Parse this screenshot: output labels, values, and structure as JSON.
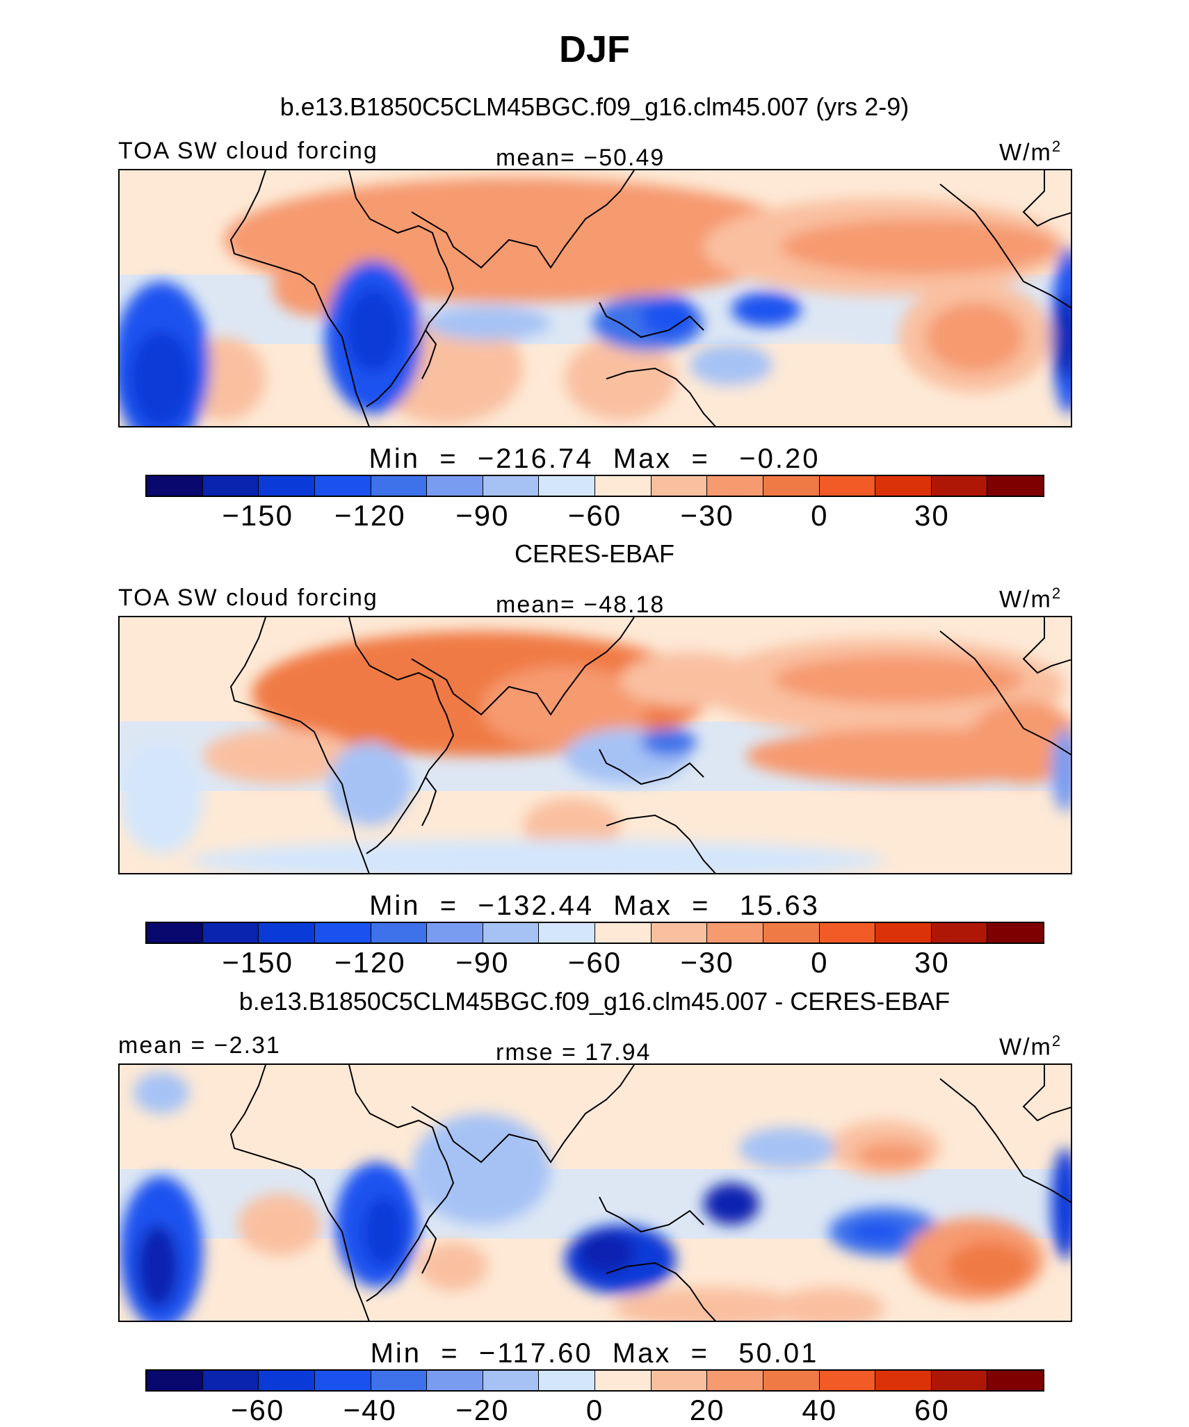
{
  "title": "DJF",
  "colorbar_colors": [
    "#08086f",
    "#0a24b0",
    "#0a3ad8",
    "#1a52f0",
    "#3e72ea",
    "#7a9cf0",
    "#a6c2f5",
    "#d4e6fb",
    "#fde9d6",
    "#f9c0a0",
    "#f69a70",
    "#f07a45",
    "#f25a26",
    "#dc3208",
    "#ae1606",
    "#7e0000"
  ],
  "panels": [
    {
      "header": "b.e13.B1850C5CLM45BGC.f09_g16.clm45.007 (yrs 2-9)",
      "left_label": "TOA SW cloud forcing",
      "center_label": "mean= −50.49",
      "units": "W/m",
      "units_sup": "2",
      "minmax": "Min  =  −216.74  Max  =   −0.20",
      "ticks": [
        "−150",
        "−120",
        "−90",
        "−60",
        "−30",
        "0",
        "30"
      ]
    },
    {
      "header": "CERES-EBAF",
      "left_label": "TOA SW cloud forcing",
      "center_label": "mean= −48.18",
      "units": "W/m",
      "units_sup": "2",
      "minmax": "Min  =  −132.44  Max  =   15.63",
      "ticks": [
        "−150",
        "−120",
        "−90",
        "−60",
        "−30",
        "0",
        "30"
      ]
    },
    {
      "header": "b.e13.B1850C5CLM45BGC.f09_g16.clm45.007 - CERES-EBAF",
      "left_label": "mean =  −2.31",
      "center_label": "rmse =  17.94",
      "units": "W/m",
      "units_sup": "2",
      "minmax": "Min  =  −117.60  Max  =   50.01",
      "ticks": [
        "−60",
        "−40",
        "−20",
        "0",
        "20",
        "40",
        "60"
      ]
    }
  ]
}
